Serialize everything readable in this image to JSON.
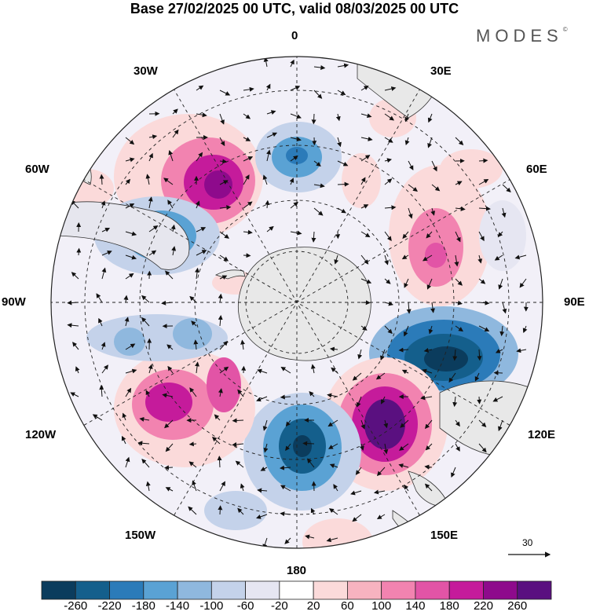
{
  "header": {
    "title": "Base 27/02/2025 00 UTC, valid 08/03/2025 00 UTC",
    "brand": "MODES",
    "brand_mark": "©"
  },
  "map": {
    "projection": "south-polar-stereographic",
    "longitude_labels": {
      "lon_0": "0",
      "lon_30e": "30E",
      "lon_60e": "60E",
      "lon_90e": "90E",
      "lon_120e": "120E",
      "lon_150e": "150E",
      "lon_180": "180",
      "lon_150w": "150W",
      "lon_120w": "120W",
      "lon_90w": "90W",
      "lon_60w": "60W",
      "lon_30w": "30W"
    },
    "reference_vector_label": "30",
    "land_color": "#e8e8e8",
    "grid_style": "dashed"
  },
  "colorbar": {
    "colors": [
      "#0b3c5d",
      "#145f8c",
      "#2b7bb9",
      "#5aa2d4",
      "#8fb8de",
      "#c4d2ea",
      "#e6e6f2",
      "#ffffff",
      "#fbdada",
      "#f7b3c0",
      "#f283b0",
      "#e254a6",
      "#c51b9b",
      "#8e0a8c",
      "#5a1080"
    ],
    "ticks": [
      "-260",
      "-220",
      "-180",
      "-140",
      "-100",
      "-60",
      "-20",
      "20",
      "60",
      "100",
      "140",
      "180",
      "220",
      "260"
    ]
  }
}
